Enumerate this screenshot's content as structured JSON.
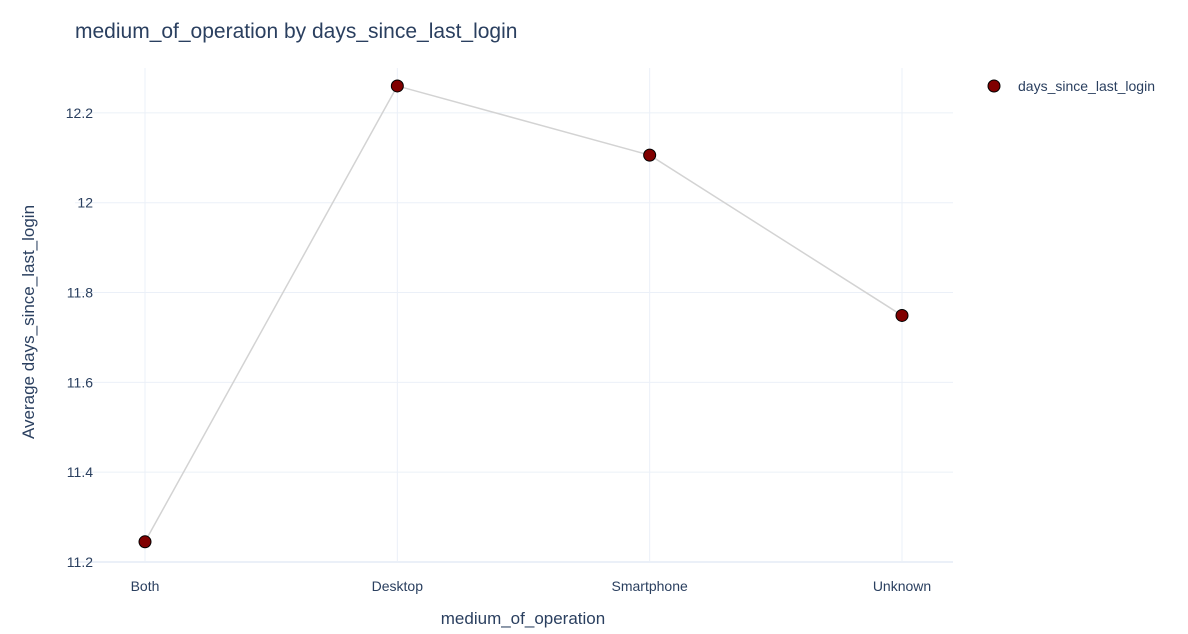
{
  "chart_data": {
    "type": "line",
    "title": "medium_of_operation by days_since_last_login",
    "xlabel": "medium_of_operation",
    "ylabel": "Average days_since_last_login",
    "categories": [
      "Both",
      "Desktop",
      "Smartphone",
      "Unknown"
    ],
    "series": [
      {
        "name": "days_since_last_login",
        "values": [
          11.245,
          12.26,
          12.106,
          11.749
        ]
      }
    ],
    "ylim": [
      11.2,
      12.3
    ],
    "yticks": [
      11.2,
      11.4,
      11.6,
      11.8,
      12,
      12.2
    ],
    "ytick_labels": [
      "11.2",
      "11.4",
      "11.6",
      "11.8",
      "12",
      "12.2"
    ],
    "grid": true,
    "legend_position": "top-right",
    "colors": {
      "marker_fill": "#800000",
      "marker_outline": "#000000",
      "line": "#d3d3d3",
      "grid": "#ebf0f8",
      "text": "#2a3f5f"
    }
  }
}
